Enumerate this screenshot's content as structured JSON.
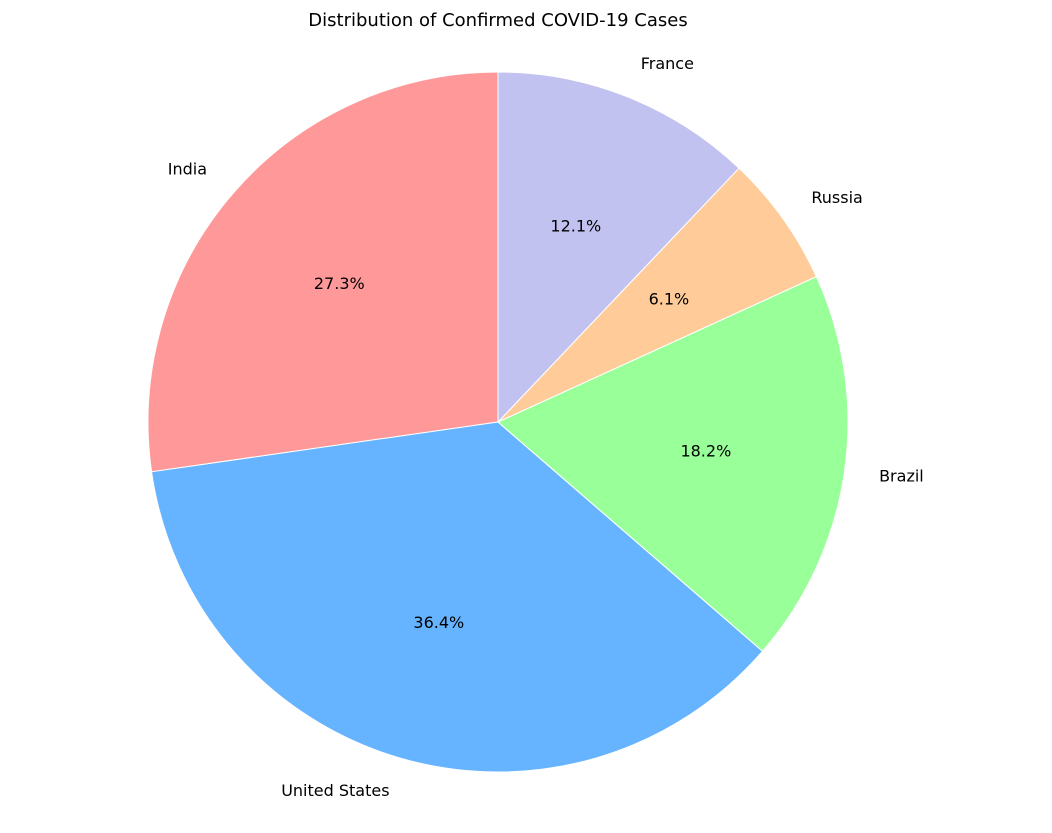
{
  "chart_data": {
    "type": "pie",
    "title": "Distribution of Confirmed COVID-19 Cases",
    "categories": [
      "India",
      "United States",
      "Brazil",
      "Russia",
      "France"
    ],
    "values": [
      27.3,
      36.4,
      18.2,
      6.1,
      12.1
    ],
    "percent_labels": [
      "27.3%",
      "36.4%",
      "18.2%",
      "6.1%",
      "12.1%"
    ],
    "colors": [
      "#ff9999",
      "#66b3ff",
      "#99ff99",
      "#ffcc99",
      "#c2c2f0"
    ],
    "start_angle_deg": 90,
    "direction": "counterclockwise",
    "legend": "none"
  }
}
